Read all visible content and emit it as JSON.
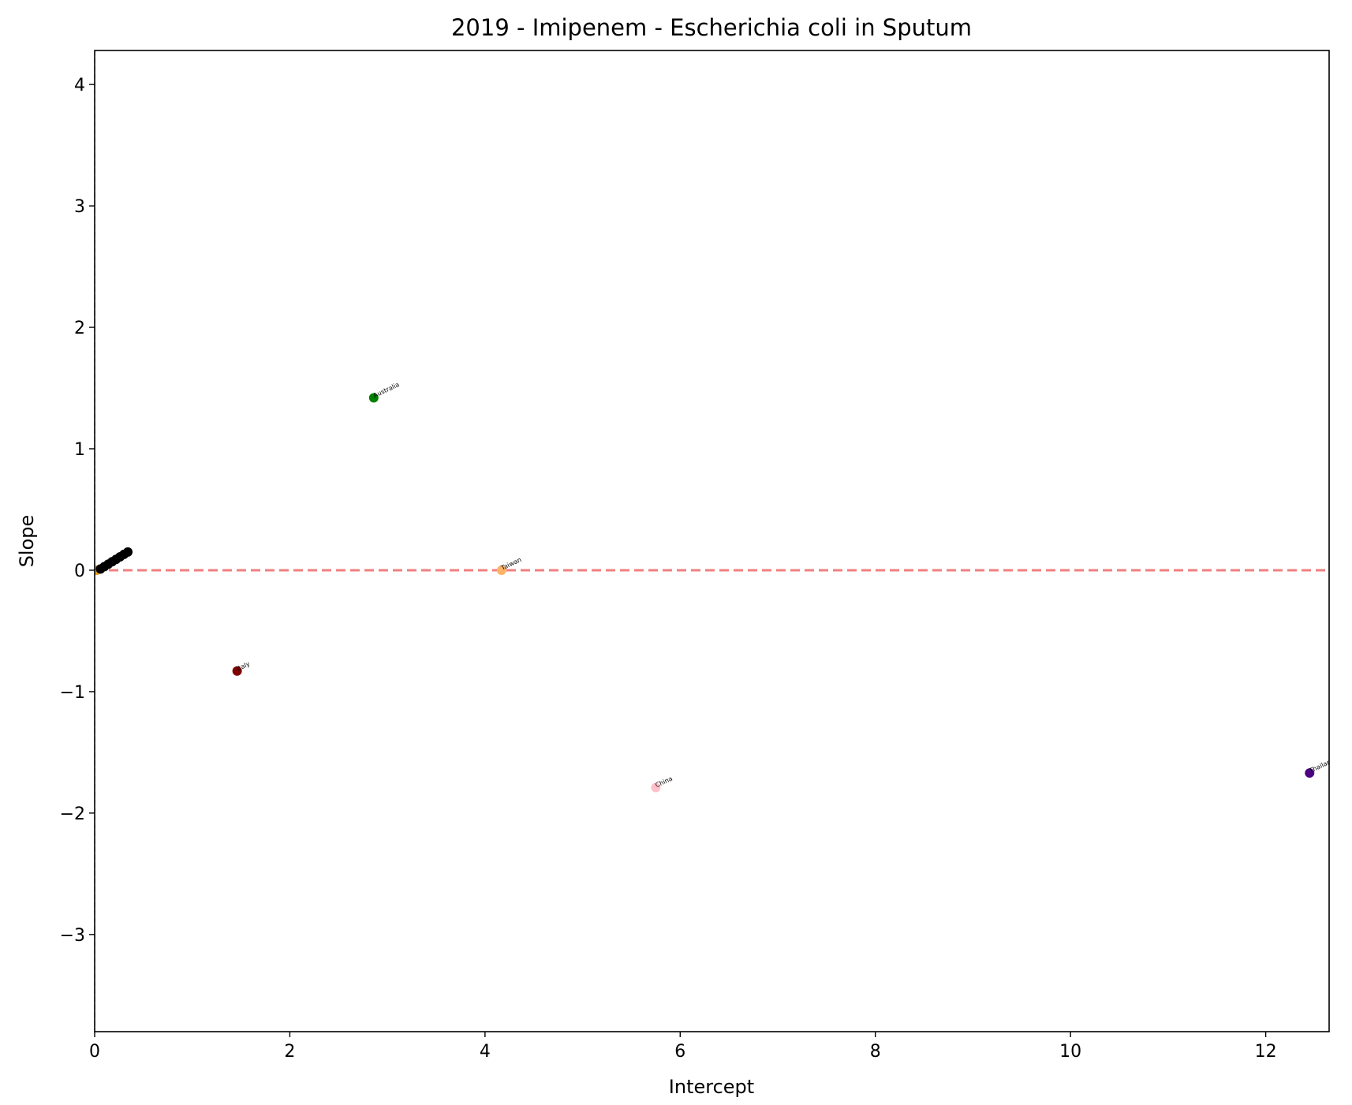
{
  "chart_data": {
    "type": "scatter",
    "title": "2019 - Imipenem - Escherichia coli in Sputum",
    "xlabel": "Intercept",
    "ylabel": "Slope",
    "xlim": [
      0,
      12.65
    ],
    "ylim": [
      -3.8,
      4.28
    ],
    "x_ticks": [
      0,
      2,
      4,
      6,
      8,
      10,
      12
    ],
    "y_ticks": [
      -3,
      -2,
      -1,
      0,
      1,
      2,
      3,
      4
    ],
    "x_tick_labels": [
      "0",
      "2",
      "4",
      "6",
      "8",
      "10",
      "12"
    ],
    "y_tick_labels": [
      "−3",
      "−2",
      "−1",
      "0",
      "1",
      "2",
      "3",
      "4"
    ],
    "reference_line": {
      "y": 0,
      "color": "#f08080",
      "style": "dashed"
    },
    "vertical_reference_line": {
      "x": 0,
      "color": "#2e6b2e",
      "style": "dashed"
    },
    "grid": false,
    "points": [
      {
        "label": "Australia",
        "x": 2.86,
        "y": 1.42,
        "color": "#008000"
      },
      {
        "label": "Taiwan",
        "x": 4.17,
        "y": 0.0,
        "color": "#ffb366"
      },
      {
        "label": "Italy",
        "x": 1.46,
        "y": -0.83,
        "color": "#800000"
      },
      {
        "label": "China",
        "x": 5.75,
        "y": -1.79,
        "color": "#ffc0cb"
      },
      {
        "label": "Thailand",
        "x": 12.45,
        "y": -1.67,
        "color": "#4b0082"
      },
      {
        "label": "",
        "x": 0.02,
        "y": 0.0,
        "color": "#e6a020"
      },
      {
        "label": "",
        "x": 0.06,
        "y": 0.01,
        "color": "#000000"
      },
      {
        "label": "",
        "x": 0.1,
        "y": 0.03,
        "color": "#000000"
      },
      {
        "label": "",
        "x": 0.14,
        "y": 0.05,
        "color": "#000000"
      },
      {
        "label": "",
        "x": 0.18,
        "y": 0.07,
        "color": "#000000"
      },
      {
        "label": "",
        "x": 0.22,
        "y": 0.09,
        "color": "#000000"
      },
      {
        "label": "",
        "x": 0.26,
        "y": 0.11,
        "color": "#000000"
      },
      {
        "label": "",
        "x": 0.3,
        "y": 0.13,
        "color": "#000000"
      },
      {
        "label": "",
        "x": 0.34,
        "y": 0.15,
        "color": "#000000"
      }
    ]
  }
}
